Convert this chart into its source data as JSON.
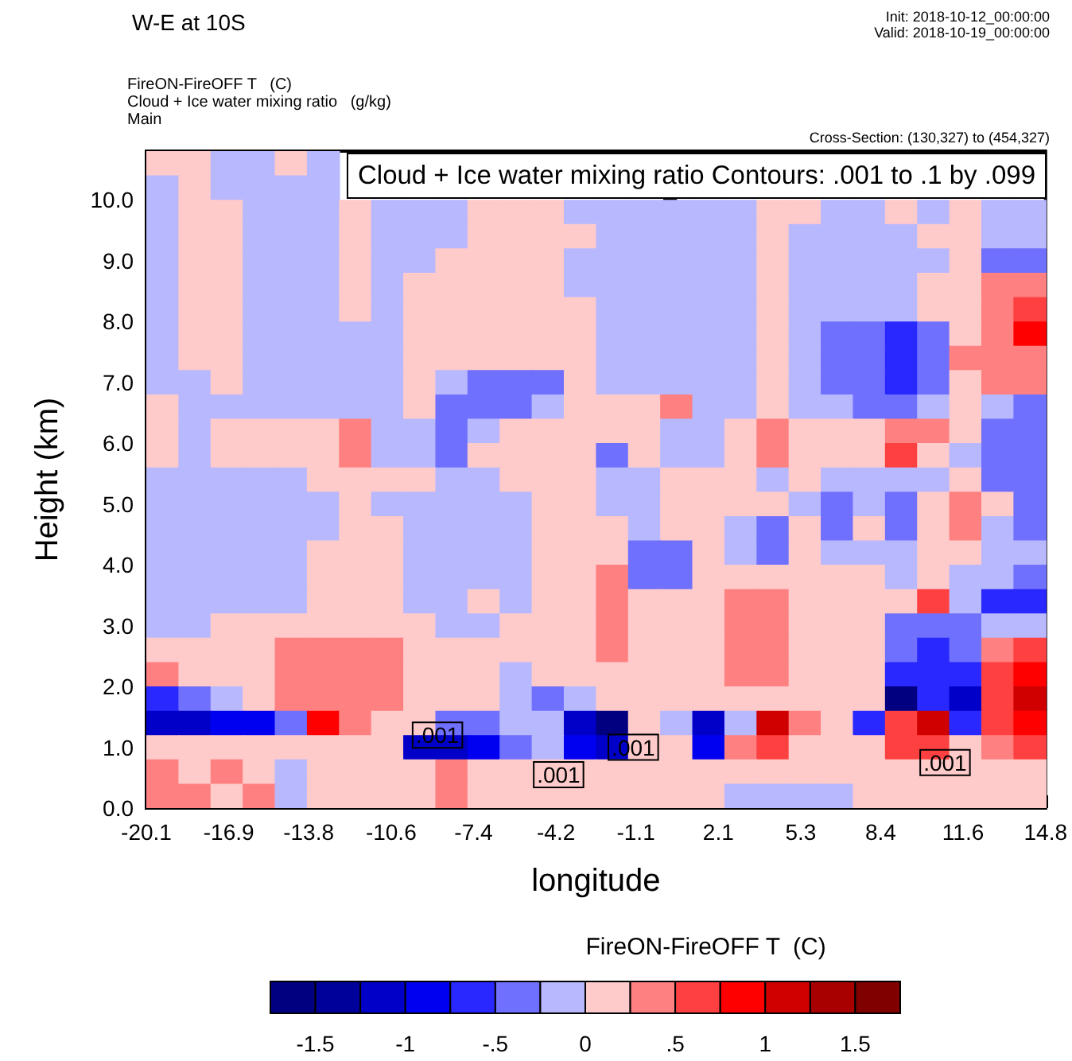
{
  "chart_data": {
    "type": "heatmap",
    "title": "W-E at 10S",
    "subtitle": "FireON-FireOFF T   (C)\nCloud + Ice water mixing ratio   (g/kg)\nMain",
    "xlabel": "longitude",
    "ylabel": "Height (km)",
    "clabel": "FireON-FireOFF T  (C)",
    "annotations": [
      "Init: 2018-10-12_00:00:00",
      "Valid: 2018-10-19_00:00:00",
      "Cross-Section: (130,327) to (454,327)",
      "Cloud + Ice water mixing ratio Contours: .001 to .1 by .099",
      {
        "text": ".001",
        "x": -8.8,
        "y": 1.2
      },
      {
        "text": ".001",
        "x": -4.1,
        "y": 0.55
      },
      {
        "text": ".001",
        "x": -1.2,
        "y": 1.0
      },
      {
        "text": ".001",
        "x": 10.9,
        "y": 0.75
      }
    ],
    "xlim": [
      -20.1,
      14.8
    ],
    "xticks": [
      -20.1,
      -16.9,
      -13.8,
      -10.6,
      -7.4,
      -4.2,
      -1.1,
      2.1,
      5.3,
      8.4,
      11.6,
      14.8
    ],
    "ylim": [
      0,
      10.8
    ],
    "yticks": [
      {
        "value": 0,
        "label": "0.0"
      },
      {
        "value": 1,
        "label": "1.0"
      },
      {
        "value": 2,
        "label": "2.0"
      },
      {
        "value": 3,
        "label": "3.0"
      },
      {
        "value": 4,
        "label": "4.0"
      },
      {
        "value": 5,
        "label": "5.0"
      },
      {
        "value": 6,
        "label": "6.0"
      },
      {
        "value": 7,
        "label": "7.0"
      },
      {
        "value": 8,
        "label": "8.0"
      },
      {
        "value": 9,
        "label": "9.0"
      },
      {
        "value": 10,
        "label": "10.0"
      }
    ],
    "clim": [
      -1.75,
      1.75
    ],
    "cticks": [
      -1.5,
      -1,
      {
        "value": -0.5,
        "label": "-.5"
      },
      0,
      {
        "value": 0.5,
        "label": ".5"
      },
      1,
      1.5
    ],
    "colors": [
      "#000080",
      "#00009b",
      "#0000c8",
      "#0000f0",
      "#2828ff",
      "#7070ff",
      "#b8b8ff",
      "#ffcaca",
      "#ff8080",
      "#ff4040",
      "#ff0000",
      "#d00000",
      "#a80000",
      "#800000"
    ],
    "cells": [
      [
        0.1,
        0.1,
        -0.1,
        -0.1,
        0.1,
        -0.1,
        null,
        null,
        null,
        null,
        null,
        null,
        null,
        null,
        null,
        null,
        null,
        null,
        null,
        null,
        null,
        null,
        null,
        null,
        null,
        null,
        null,
        null
      ],
      [
        -0.1,
        0.1,
        -0.1,
        -0.1,
        -0.1,
        -0.1,
        null,
        null,
        null,
        null,
        null,
        null,
        null,
        null,
        null,
        null,
        null,
        null,
        null,
        null,
        null,
        null,
        null,
        null,
        null,
        null,
        null,
        null
      ],
      [
        -0.1,
        0.1,
        0.1,
        -0.1,
        -0.1,
        -0.1,
        0.1,
        -0.1,
        -0.1,
        -0.1,
        0.1,
        0.1,
        0.1,
        -0.1,
        -0.1,
        -0.1,
        -0.1,
        -0.1,
        -0.1,
        0.1,
        0.1,
        -0.1,
        -0.1,
        0.1,
        -0.1,
        0.1,
        -0.1,
        -0.1
      ],
      [
        -0.1,
        0.1,
        0.1,
        -0.1,
        -0.1,
        -0.1,
        0.1,
        -0.1,
        -0.1,
        -0.1,
        0.1,
        0.1,
        0.1,
        0.1,
        -0.1,
        -0.1,
        -0.1,
        -0.1,
        -0.1,
        0.1,
        -0.1,
        -0.1,
        -0.1,
        -0.1,
        0.1,
        0.1,
        -0.1,
        -0.1
      ],
      [
        -0.1,
        0.1,
        0.1,
        -0.1,
        -0.1,
        -0.1,
        0.1,
        -0.1,
        -0.1,
        0.1,
        0.1,
        0.1,
        0.1,
        -0.1,
        -0.1,
        -0.1,
        -0.1,
        -0.1,
        -0.1,
        0.1,
        -0.1,
        -0.1,
        -0.1,
        -0.1,
        -0.1,
        0.1,
        -0.4,
        -0.4
      ],
      [
        -0.1,
        0.1,
        0.1,
        -0.1,
        -0.1,
        -0.1,
        0.1,
        -0.1,
        0.1,
        0.1,
        0.1,
        0.1,
        0.1,
        -0.1,
        -0.1,
        -0.1,
        -0.1,
        -0.1,
        -0.1,
        0.1,
        -0.1,
        -0.1,
        -0.1,
        -0.1,
        0.1,
        0.1,
        0.4,
        0.4
      ],
      [
        -0.1,
        0.1,
        0.1,
        -0.1,
        -0.1,
        -0.1,
        0.1,
        -0.1,
        0.1,
        0.1,
        0.1,
        0.1,
        0.1,
        0.1,
        -0.1,
        -0.1,
        -0.1,
        -0.1,
        -0.1,
        0.1,
        -0.1,
        -0.1,
        -0.1,
        -0.1,
        0.1,
        0.1,
        0.4,
        0.6
      ],
      [
        -0.1,
        0.1,
        0.1,
        -0.1,
        -0.1,
        -0.1,
        -0.1,
        -0.1,
        0.1,
        0.1,
        0.1,
        0.1,
        0.1,
        0.1,
        -0.1,
        -0.1,
        -0.1,
        -0.1,
        -0.1,
        0.1,
        -0.1,
        -0.4,
        -0.4,
        -0.6,
        -0.4,
        0.1,
        0.4,
        0.9
      ],
      [
        -0.1,
        0.1,
        0.1,
        -0.1,
        -0.1,
        -0.1,
        -0.1,
        -0.1,
        0.1,
        0.1,
        0.1,
        0.1,
        0.1,
        0.1,
        -0.1,
        -0.1,
        -0.1,
        -0.1,
        -0.1,
        0.1,
        -0.1,
        -0.4,
        -0.4,
        -0.6,
        -0.4,
        0.4,
        0.4,
        0.4
      ],
      [
        -0.1,
        -0.1,
        0.1,
        -0.1,
        -0.1,
        -0.1,
        -0.1,
        -0.1,
        0.1,
        -0.1,
        -0.4,
        -0.4,
        -0.4,
        0.1,
        -0.1,
        -0.1,
        -0.1,
        -0.1,
        -0.1,
        0.1,
        -0.1,
        -0.4,
        -0.4,
        -0.6,
        -0.4,
        0.1,
        0.4,
        0.4
      ],
      [
        0.1,
        -0.1,
        -0.1,
        -0.1,
        -0.1,
        -0.1,
        -0.1,
        -0.1,
        0.1,
        -0.4,
        -0.4,
        -0.4,
        -0.1,
        0.1,
        0.1,
        0.1,
        0.4,
        -0.1,
        -0.1,
        0.1,
        -0.1,
        -0.1,
        -0.4,
        -0.4,
        -0.1,
        0.1,
        -0.1,
        -0.4
      ],
      [
        0.1,
        -0.1,
        0.1,
        0.1,
        0.1,
        0.1,
        0.4,
        -0.1,
        -0.1,
        -0.4,
        -0.1,
        0.1,
        0.1,
        0.1,
        0.1,
        0.1,
        -0.1,
        -0.1,
        0.1,
        0.4,
        0.1,
        0.1,
        0.1,
        0.4,
        0.4,
        0.1,
        -0.4,
        -0.4
      ],
      [
        0.1,
        -0.1,
        0.1,
        0.1,
        0.1,
        0.1,
        0.4,
        -0.1,
        -0.1,
        -0.4,
        0.1,
        0.1,
        0.1,
        0.1,
        -0.4,
        0.1,
        -0.1,
        -0.1,
        0.1,
        0.4,
        0.1,
        0.1,
        0.1,
        0.6,
        0.1,
        -0.1,
        -0.4,
        -0.4
      ],
      [
        -0.1,
        -0.1,
        -0.1,
        -0.1,
        -0.1,
        0.1,
        0.1,
        0.1,
        0.1,
        -0.1,
        -0.1,
        0.1,
        0.1,
        0.1,
        -0.1,
        -0.1,
        0.1,
        0.1,
        0.1,
        -0.1,
        0.1,
        -0.1,
        -0.1,
        -0.1,
        -0.1,
        0.1,
        -0.4,
        -0.4
      ],
      [
        -0.1,
        -0.1,
        -0.1,
        -0.1,
        -0.1,
        -0.1,
        0.1,
        -0.1,
        -0.1,
        -0.1,
        -0.1,
        -0.1,
        0.1,
        0.1,
        -0.1,
        -0.1,
        0.1,
        0.1,
        0.1,
        0.1,
        -0.1,
        -0.4,
        -0.1,
        -0.4,
        0.1,
        0.4,
        0.1,
        -0.4
      ],
      [
        -0.1,
        -0.1,
        -0.1,
        -0.1,
        -0.1,
        -0.1,
        0.1,
        0.1,
        -0.1,
        -0.1,
        -0.1,
        -0.1,
        0.1,
        0.1,
        0.1,
        -0.1,
        0.1,
        0.1,
        -0.1,
        -0.4,
        0.1,
        -0.4,
        0.1,
        -0.4,
        0.1,
        0.4,
        -0.1,
        -0.4
      ],
      [
        -0.1,
        -0.1,
        -0.1,
        -0.1,
        -0.1,
        0.1,
        0.1,
        0.1,
        -0.1,
        -0.1,
        -0.1,
        -0.1,
        0.1,
        0.1,
        0.1,
        -0.4,
        -0.4,
        0.1,
        -0.1,
        -0.4,
        0.1,
        -0.1,
        -0.1,
        -0.1,
        0.1,
        0.1,
        -0.1,
        -0.1
      ],
      [
        -0.1,
        -0.1,
        -0.1,
        -0.1,
        -0.1,
        0.1,
        0.1,
        0.1,
        -0.1,
        -0.1,
        -0.1,
        -0.1,
        0.1,
        0.1,
        0.4,
        -0.4,
        -0.4,
        0.1,
        0.1,
        0.1,
        0.1,
        0.1,
        0.1,
        -0.1,
        0.1,
        -0.1,
        -0.1,
        -0.4
      ],
      [
        -0.1,
        -0.1,
        -0.1,
        -0.1,
        -0.1,
        0.1,
        0.1,
        0.1,
        -0.1,
        -0.1,
        0.1,
        -0.1,
        0.1,
        0.1,
        0.4,
        0.1,
        0.1,
        0.1,
        0.4,
        0.4,
        0.1,
        0.1,
        0.1,
        0.1,
        0.6,
        -0.1,
        -0.6,
        -0.6
      ],
      [
        -0.1,
        -0.1,
        0.1,
        0.1,
        0.1,
        0.1,
        0.1,
        0.1,
        0.1,
        -0.1,
        -0.1,
        0.1,
        0.1,
        0.1,
        0.4,
        0.1,
        0.1,
        0.1,
        0.4,
        0.4,
        0.1,
        0.1,
        0.1,
        -0.4,
        -0.4,
        -0.4,
        -0.1,
        -0.1
      ],
      [
        0.1,
        0.1,
        0.1,
        0.1,
        0.4,
        0.4,
        0.4,
        0.4,
        0.1,
        0.1,
        0.1,
        0.1,
        0.1,
        0.1,
        0.4,
        0.1,
        0.1,
        0.1,
        0.4,
        0.4,
        0.1,
        0.1,
        0.1,
        -0.4,
        -0.6,
        -0.4,
        0.4,
        0.6
      ],
      [
        0.4,
        0.1,
        0.1,
        0.1,
        0.4,
        0.4,
        0.4,
        0.4,
        0.1,
        0.1,
        0.1,
        -0.1,
        0.1,
        0.1,
        0.1,
        0.1,
        0.1,
        0.1,
        0.4,
        0.4,
        0.1,
        0.1,
        0.1,
        -0.6,
        -0.6,
        -0.6,
        0.6,
        0.9
      ],
      [
        -0.6,
        -0.4,
        -0.1,
        0.1,
        0.4,
        0.4,
        0.4,
        0.4,
        0.1,
        0.1,
        0.1,
        -0.1,
        -0.4,
        -0.1,
        0.1,
        0.1,
        0.1,
        0.1,
        0.1,
        0.1,
        0.1,
        0.1,
        0.1,
        -1.6,
        -0.6,
        -1.1,
        0.6,
        1.1
      ],
      [
        -1.1,
        -1.1,
        -0.9,
        -0.9,
        -0.4,
        0.9,
        0.4,
        0.1,
        0.1,
        -0.4,
        -0.4,
        -0.1,
        -0.1,
        -1.1,
        -1.6,
        0.1,
        -0.1,
        -1.1,
        -0.1,
        1.1,
        0.4,
        0.1,
        -0.6,
        0.6,
        1.1,
        -0.6,
        0.6,
        0.9
      ],
      [
        0.1,
        0.1,
        0.1,
        0.1,
        0.1,
        0.1,
        0.1,
        0.1,
        -1.1,
        -1.1,
        -0.9,
        -0.4,
        -0.1,
        -0.9,
        -1.1,
        0.1,
        0.1,
        -0.9,
        0.4,
        0.6,
        0.1,
        0.1,
        0.1,
        0.6,
        0.6,
        0.1,
        0.4,
        0.6
      ],
      [
        0.4,
        0.1,
        0.4,
        0.1,
        -0.1,
        0.1,
        0.1,
        0.1,
        0.1,
        0.4,
        0.1,
        0.1,
        0.1,
        0.1,
        0.1,
        0.1,
        0.1,
        0.1,
        0.1,
        0.1,
        0.1,
        0.1,
        0.1,
        0.1,
        0.1,
        0.1,
        0.1,
        0.1
      ],
      [
        0.4,
        0.4,
        0.1,
        0.4,
        -0.1,
        0.1,
        0.1,
        0.1,
        0.1,
        0.4,
        0.1,
        0.1,
        0.1,
        0.1,
        0.1,
        0.1,
        0.1,
        0.1,
        -0.1,
        -0.1,
        -0.1,
        -0.1,
        0.1,
        0.1,
        0.1,
        0.1,
        0.1,
        0.1
      ]
    ]
  }
}
